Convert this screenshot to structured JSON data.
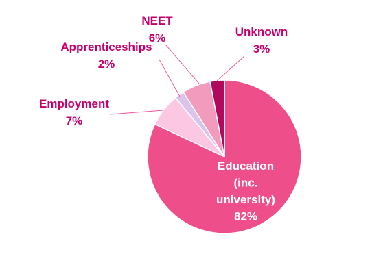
{
  "chart_data": {
    "type": "pie",
    "title": "",
    "start_angle_deg": 0,
    "slices": [
      {
        "name": "Education (inc. university)",
        "label_lines": [
          "Education",
          "(inc.",
          "university)"
        ],
        "value": 82,
        "pct_label": "82%",
        "color": "#ee4f8a"
      },
      {
        "name": "Employment",
        "label_lines": [
          "Employment"
        ],
        "value": 7,
        "pct_label": "7%",
        "color": "#fbc7e3"
      },
      {
        "name": "Apprenticeships",
        "label_lines": [
          "Apprenticeships"
        ],
        "value": 2,
        "pct_label": "2%",
        "color": "#dcc3ec"
      },
      {
        "name": "NEET",
        "label_lines": [
          "NEET"
        ],
        "value": 6,
        "pct_label": "6%",
        "color": "#f29bbd"
      },
      {
        "name": "Unknown",
        "label_lines": [
          "Unknown"
        ],
        "value": 3,
        "pct_label": "3%",
        "color": "#b00a5c"
      }
    ],
    "label_color": "#c8006e",
    "inside_label_color": "#ffffff",
    "leader_color": "#e8559b"
  }
}
